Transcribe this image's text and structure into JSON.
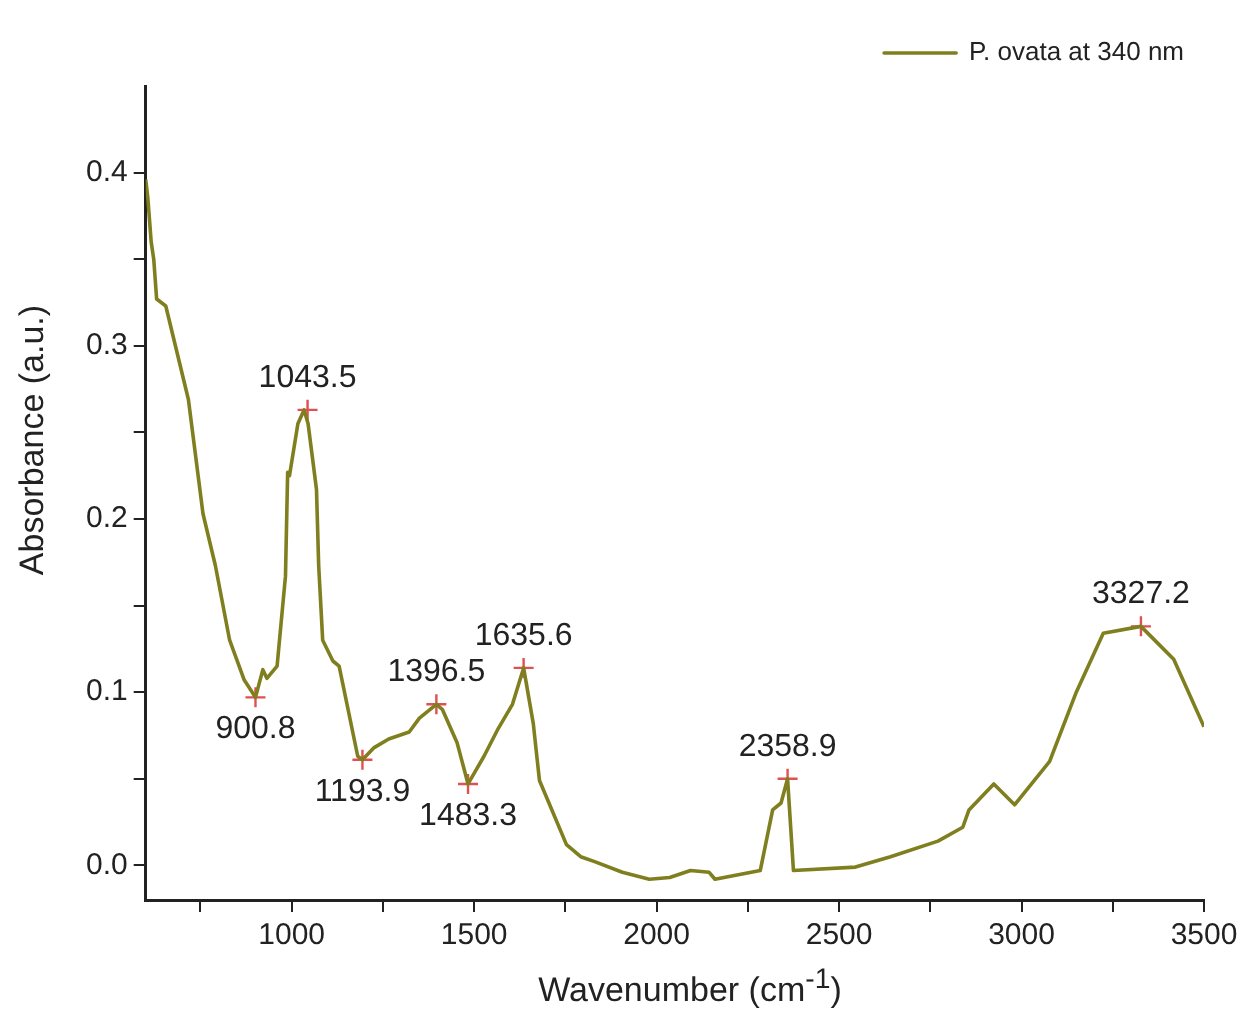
{
  "chart_data": {
    "type": "line",
    "xlabel": "Wavenumber (cm$^{-1}$)",
    "ylabel": "Absorbance (a.u.)",
    "xlim": [
      600,
      3500
    ],
    "ylim": [
      -0.02,
      0.45
    ],
    "xticks": [
      {
        "value": 750,
        "label": null
      },
      1000,
      {
        "value": 1250,
        "label": null
      },
      1500,
      {
        "value": 1750,
        "label": null
      },
      2000,
      {
        "value": 2250,
        "label": null
      },
      2500,
      {
        "value": 2750,
        "label": null
      },
      3000,
      {
        "value": 3250,
        "label": null
      },
      3500
    ],
    "yticks": [
      {
        "value": 0,
        "label": "0.0"
      },
      {
        "value": 0.05,
        "label": null
      },
      0.1,
      {
        "value": 0.15,
        "label": null
      },
      0.2,
      {
        "value": 0.25,
        "label": null
      },
      0.3,
      {
        "value": 0.35,
        "label": null
      },
      0.4
    ],
    "grid": false,
    "legend": "top right",
    "series": [
      {
        "name": "P. ovata at 340 nm",
        "color": "#7f7f1f",
        "marker": "none",
        "line_style": "solid",
        "x": [
          600,
          606,
          615,
          622,
          630,
          655,
          717,
          757,
          791,
          830,
          870,
          900.8,
          921,
          932,
          960,
          983,
          989,
          994,
          1017,
          1034,
          1045,
          1068,
          1074,
          1085,
          1113,
          1130,
          1181,
          1193.9,
          1226,
          1266,
          1322,
          1350,
          1396.5,
          1413,
          1453,
          1483.3,
          1527,
          1566,
          1605,
          1635.6,
          1662,
          1679,
          1707,
          1753,
          1792,
          1832,
          1906,
          1980,
          2036,
          2093,
          2144,
          2160,
          2284,
          2318,
          2341,
          2358.9,
          2375,
          2545,
          2641,
          2771,
          2839,
          2856,
          2924,
          2981,
          3077,
          3150,
          3224,
          3327.2,
          3417,
          3500
        ],
        "values": [
          0.396,
          0.385,
          0.36,
          0.35,
          0.327,
          0.323,
          0.269,
          0.203,
          0.173,
          0.13,
          0.107,
          0.097,
          0.113,
          0.108,
          0.115,
          0.167,
          0.227,
          0.225,
          0.255,
          0.263,
          0.255,
          0.217,
          0.173,
          0.13,
          0.118,
          0.115,
          0.063,
          0.061,
          0.068,
          0.073,
          0.077,
          0.085,
          0.093,
          0.09,
          0.071,
          0.047,
          0.063,
          0.079,
          0.093,
          0.114,
          0.082,
          0.049,
          0.035,
          0.012,
          0.005,
          0.002,
          -0.004,
          -0.008,
          -0.007,
          -0.003,
          -0.004,
          -0.008,
          -0.003,
          0.032,
          0.036,
          0.05,
          -0.003,
          -0.001,
          0.005,
          0.014,
          0.022,
          0.032,
          0.047,
          0.035,
          0.06,
          0.1,
          0.134,
          0.138,
          0.119,
          0.08
        ]
      },
      {
        "type": "scatter",
        "color": "#e05050",
        "marker": "cross",
        "x": [
          900.8,
          1043.5,
          1193.9,
          1396.5,
          1483.3,
          1635.6,
          2358.9,
          3327.2
        ],
        "values": [
          0.097,
          0.263,
          0.061,
          0.093,
          0.047,
          0.114,
          0.05,
          0.138
        ]
      }
    ],
    "annotations": [
      {
        "text": "900.8",
        "x": 900.8,
        "y": 0.097
      },
      {
        "text": "1043.5",
        "x": 1043.5,
        "y": 0.263
      },
      {
        "text": "1193.9",
        "x": 1193.9,
        "y": 0.061
      },
      {
        "text": "1396.5",
        "x": 1396.5,
        "y": 0.093
      },
      {
        "text": "1483.3",
        "x": 1483.3,
        "y": 0.047
      },
      {
        "text": "1635.6",
        "x": 1635.6,
        "y": 0.114
      },
      {
        "text": "2358.9",
        "x": 2358.9,
        "y": 0.05
      },
      {
        "text": "3327.2",
        "x": 3327.2,
        "y": 0.138
      }
    ]
  }
}
